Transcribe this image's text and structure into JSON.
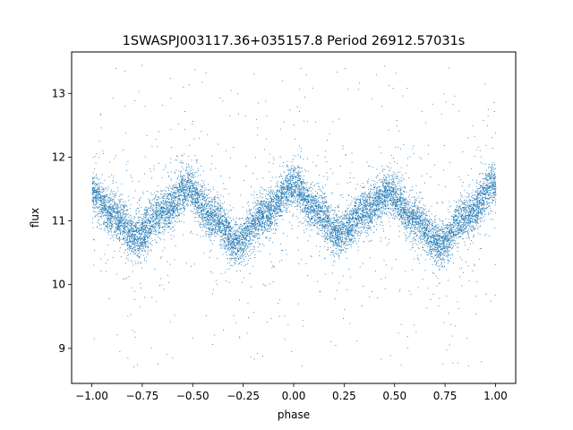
{
  "chart_data": {
    "type": "scatter",
    "title": "1SWASPJ003117.36+035157.8 Period 26912.57031s",
    "xlabel": "phase",
    "ylabel": "flux",
    "xlim": [
      -1.1,
      1.1
    ],
    "ylim": [
      8.45,
      13.65
    ],
    "xticks": [
      -1.0,
      -0.75,
      -0.5,
      -0.25,
      0.0,
      0.25,
      0.5,
      0.75,
      1.0
    ],
    "xtick_labels": [
      "−1.00",
      "−0.75",
      "−0.50",
      "−0.25",
      "0.00",
      "0.25",
      "0.50",
      "0.75",
      "1.00"
    ],
    "yticks": [
      9,
      10,
      11,
      12,
      13
    ],
    "ytick_labels": [
      "9",
      "10",
      "11",
      "12",
      "13"
    ],
    "grid": false,
    "point_color": "#1f77b4",
    "series": [
      {
        "x_range": [
          -1.0,
          1.0
        ],
        "y_range": [
          8.7,
          13.45
        ],
        "profile": [
          {
            "x": -1.0,
            "y": 11.45
          },
          {
            "x": -0.9,
            "y": 11.1
          },
          {
            "x": -0.78,
            "y": 10.75
          },
          {
            "x": -0.65,
            "y": 11.15
          },
          {
            "x": -0.53,
            "y": 11.5
          },
          {
            "x": -0.4,
            "y": 11.05
          },
          {
            "x": -0.28,
            "y": 10.65
          },
          {
            "x": -0.15,
            "y": 11.1
          },
          {
            "x": 0.0,
            "y": 11.55
          },
          {
            "x": 0.1,
            "y": 11.2
          },
          {
            "x": 0.22,
            "y": 10.8
          },
          {
            "x": 0.35,
            "y": 11.15
          },
          {
            "x": 0.47,
            "y": 11.45
          },
          {
            "x": 0.6,
            "y": 11.0
          },
          {
            "x": 0.72,
            "y": 10.65
          },
          {
            "x": 0.85,
            "y": 11.05
          },
          {
            "x": 1.0,
            "y": 11.6
          }
        ]
      }
    ]
  }
}
